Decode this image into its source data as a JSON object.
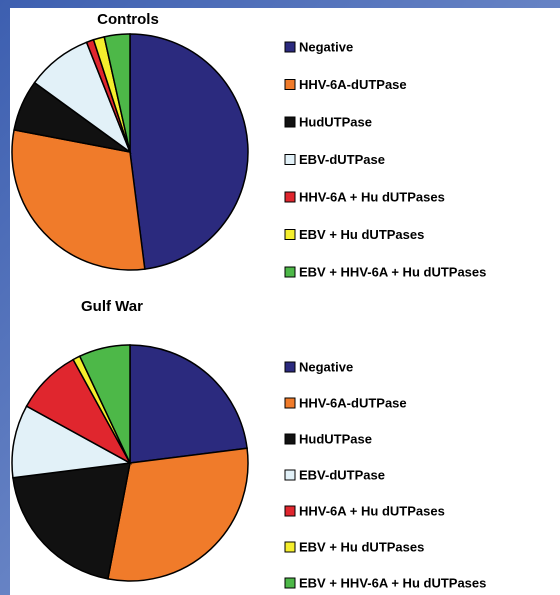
{
  "chart_data": [
    {
      "type": "pie",
      "title": "Controls",
      "categories": [
        "Negative",
        "HHV-6A-dUTPase",
        "HudUTPase",
        "EBV-dUTPase",
        "HHV-6A + Hu dUTPases",
        "EBV + Hu dUTPases",
        "EBV + HHV-6A + Hu dUTPases"
      ],
      "values": [
        48,
        30,
        7,
        9,
        1,
        1.5,
        3.5
      ],
      "colors": [
        "#2b2a7e",
        "#f07b2a",
        "#111111",
        "#e2f1f8",
        "#e0262e",
        "#f5ee2d",
        "#4db848"
      ]
    },
    {
      "type": "pie",
      "title": "Gulf War",
      "categories": [
        "Negative",
        "HHV-6A-dUTPase",
        "HudUTPase",
        "EBV-dUTPase",
        "HHV-6A + Hu dUTPases",
        "EBV + Hu dUTPases",
        "EBV + HHV-6A + Hu dUTPases"
      ],
      "values": [
        23,
        30,
        20,
        10,
        9,
        1,
        7
      ],
      "colors": [
        "#2b2a7e",
        "#f07b2a",
        "#111111",
        "#e2f1f8",
        "#e0262e",
        "#f5ee2d",
        "#4db848"
      ]
    }
  ]
}
